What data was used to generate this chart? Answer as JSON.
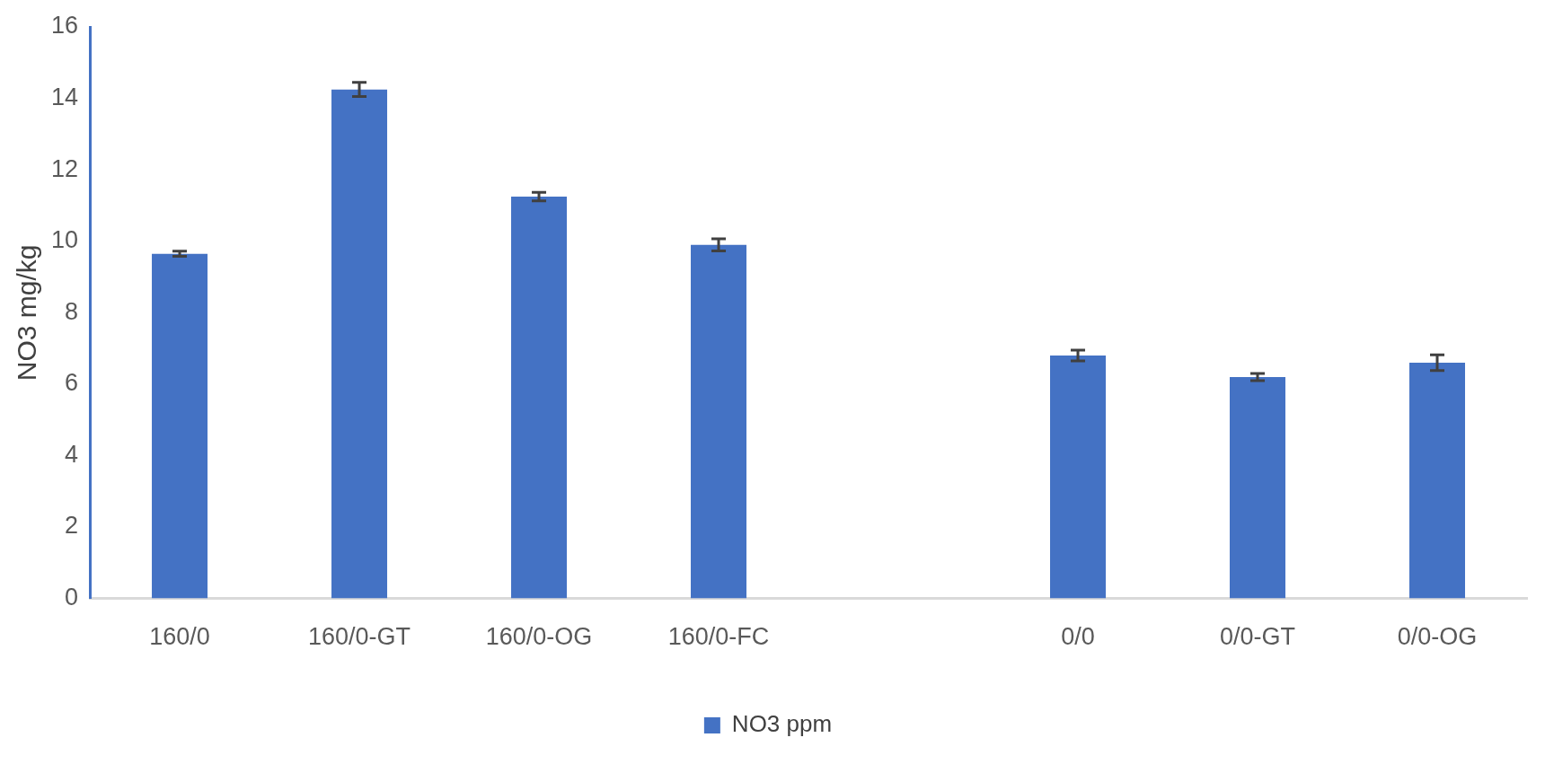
{
  "chart_data": {
    "type": "bar",
    "ylabel": "NO3 mg/kg",
    "categories": [
      "160/0",
      "160/0-GT",
      "160/0-OG",
      "160/0-FC",
      null,
      "0/0",
      "0/0-GT",
      "0/0-OG"
    ],
    "series": [
      {
        "name": "NO3 ppm",
        "color": "#4472c4",
        "values": [
          9.65,
          14.25,
          11.25,
          9.9,
          null,
          6.8,
          6.2,
          6.6
        ],
        "errors": [
          0.07,
          0.2,
          0.12,
          0.17,
          null,
          0.15,
          0.1,
          0.22
        ]
      }
    ],
    "ylim": [
      0,
      16
    ],
    "yticks": [
      0,
      2,
      4,
      6,
      8,
      10,
      12,
      14,
      16
    ],
    "grid": false,
    "legend": "bottom"
  }
}
